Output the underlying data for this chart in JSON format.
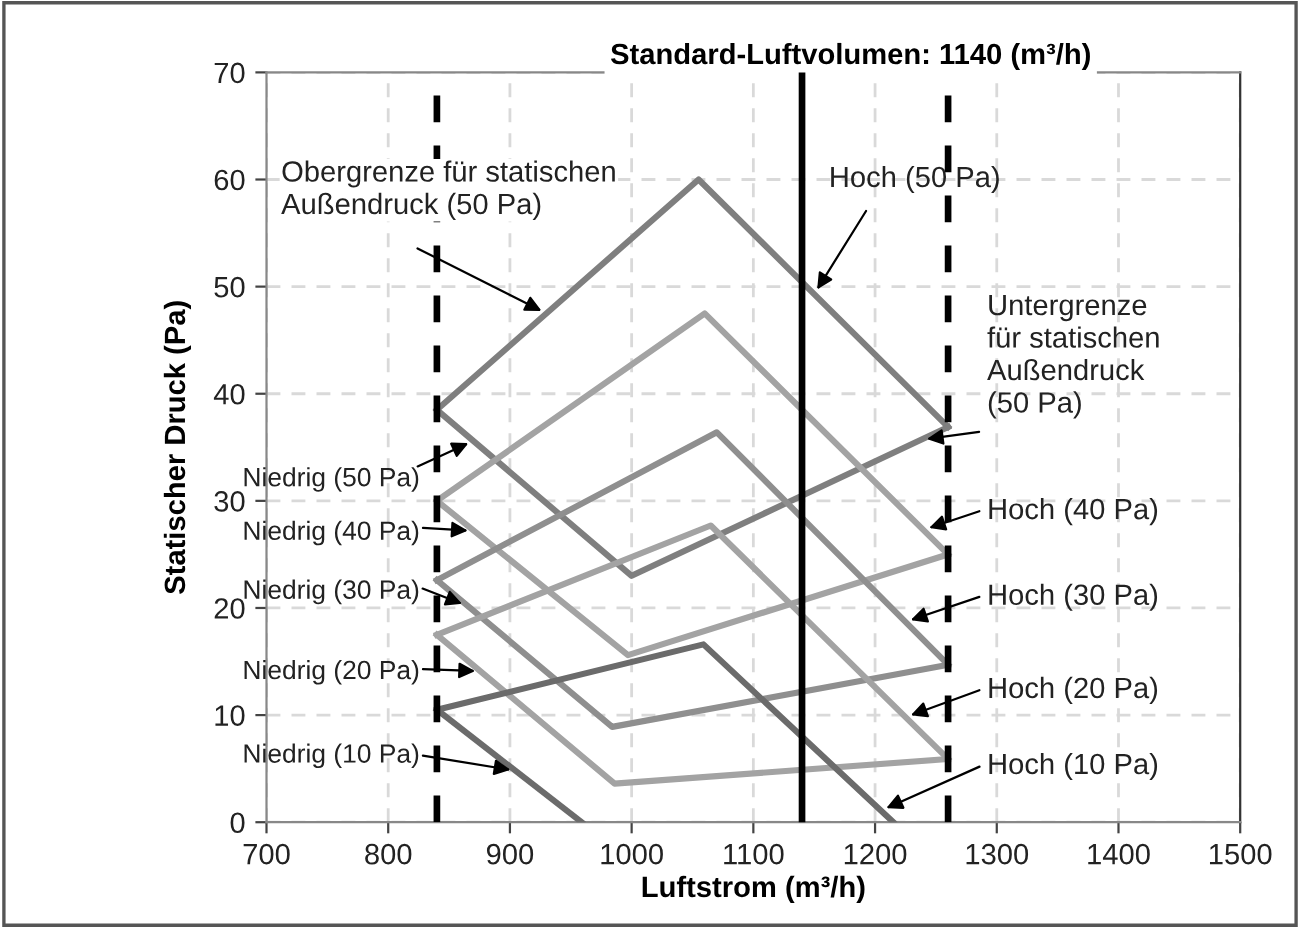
{
  "chart_data": {
    "type": "line",
    "title": "Standard-Luftvolumen: 1140 (m³/h)",
    "xlabel": "Luftstrom (m³/h)",
    "ylabel": "Statischer Druck (Pa)",
    "series": [
      {
        "color": "#7f7f7f",
        "x": [
          840,
          1055,
          1260
        ],
        "values": [
          38.5,
          60,
          36.9
        ]
      },
      {
        "color": "#7f7f7f",
        "x": [
          840,
          1000,
          1260
        ],
        "values": [
          38.5,
          23,
          36.9
        ]
      },
      {
        "color": "#a3a3a3",
        "x": [
          840,
          1060,
          1260
        ],
        "values": [
          30,
          47.5,
          25
        ]
      },
      {
        "color": "#a3a3a3",
        "x": [
          840,
          997,
          1260
        ],
        "values": [
          30,
          15.6,
          25
        ]
      },
      {
        "color": "#8f8f8f",
        "x": [
          840,
          1070,
          1260
        ],
        "values": [
          22.6,
          36.4,
          14.7
        ]
      },
      {
        "color": "#8f8f8f",
        "x": [
          840,
          984,
          1260
        ],
        "values": [
          22.6,
          8.9,
          14.7
        ]
      },
      {
        "color": "#a3a3a3",
        "x": [
          840,
          1065,
          1260
        ],
        "values": [
          17.5,
          27.7,
          5.9
        ]
      },
      {
        "color": "#a3a3a3",
        "x": [
          840,
          986,
          1260
        ],
        "values": [
          17.5,
          3.6,
          5.9
        ]
      },
      {
        "color": "#6b6b6b",
        "x": [
          840,
          1059,
          1215
        ],
        "values": [
          10.5,
          16.6,
          0
        ]
      },
      {
        "color": "#6b6b6b",
        "x": [
          840,
          959
        ],
        "values": [
          10.5,
          0
        ]
      }
    ],
    "ref_lines": [
      {
        "axis": "x",
        "value": 840,
        "color": "#000000",
        "line_style": "dashed"
      },
      {
        "axis": "x",
        "value": 1140,
        "color": "#000000",
        "line_style": "solid"
      },
      {
        "axis": "x",
        "value": 1260,
        "color": "#000000",
        "line_style": "dashed"
      }
    ],
    "annotations": [
      {
        "text": "Obergrenze für statischen\nAußendruck (50 Pa)",
        "x": 930,
        "y": 47.5
      },
      {
        "text": "Hoch (50 Pa)",
        "x": 1150,
        "y": 49.3
      },
      {
        "text": "Untergrenze\nfür statischen\nAußendruck\n(50 Pa)",
        "x": 1238,
        "y": 35.7
      },
      {
        "text": "Niedrig (50 Pa)",
        "x": 870,
        "y": 35.6
      },
      {
        "text": "Niedrig (40 Pa)",
        "x": 870,
        "y": 27.2
      },
      {
        "text": "Niedrig (30 Pa)",
        "x": 865,
        "y": 20.2
      },
      {
        "text": "Niedrig (20 Pa)",
        "x": 876,
        "y": 14.1
      },
      {
        "text": "Niedrig (10 Pa)",
        "x": 905,
        "y": 4.8
      },
      {
        "text": "Hoch (40 Pa)",
        "x": 1240,
        "y": 27.3
      },
      {
        "text": "Hoch (30 Pa)",
        "x": 1225,
        "y": 18.7
      },
      {
        "text": "Hoch (20 Pa)",
        "x": 1225,
        "y": 9.8
      },
      {
        "text": "Hoch (10 Pa)",
        "x": 1205,
        "y": 1.1
      }
    ],
    "xlim": [
      700,
      1500
    ],
    "xticks": [
      700,
      800,
      900,
      1000,
      1100,
      1200,
      1300,
      1400,
      1500
    ],
    "ylim": [
      0,
      70
    ],
    "yticks": [
      0,
      10,
      20,
      30,
      40,
      50,
      60,
      70
    ],
    "grid": true,
    "marker": "none",
    "line_style": "solid"
  }
}
